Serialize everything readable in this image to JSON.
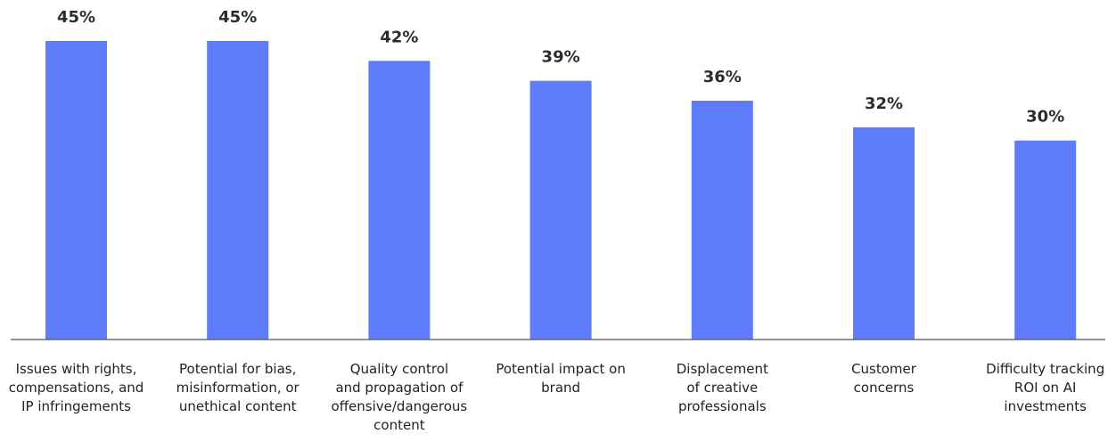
{
  "chart_data": {
    "type": "bar",
    "categories": [
      "Issues with rights, compensations, and IP infringements",
      "Potential for bias, misinformation, or unethical content",
      "Quality control and propagation of offensive/dangerous content",
      "Potential impact on brand",
      "Displacement of creative professionals",
      "Customer concerns",
      "Difficulty tracking ROI on AI investments"
    ],
    "category_lines": [
      [
        "Issues with rights,",
        "compensations, and",
        "IP infringements"
      ],
      [
        "Potential for bias,",
        "misinformation, or",
        "unethical content"
      ],
      [
        "Quality control",
        "and propagation of",
        "offensive/dangerous",
        "content"
      ],
      [
        "Potential impact on",
        "brand"
      ],
      [
        "Displacement",
        "of creative",
        "professionals"
      ],
      [
        "Customer",
        "concerns"
      ],
      [
        "Difficulty tracking",
        "ROI on AI",
        "investments"
      ]
    ],
    "values": [
      45,
      45,
      42,
      39,
      36,
      32,
      30
    ],
    "value_labels": [
      "45%",
      "45%",
      "42%",
      "39%",
      "36%",
      "32%",
      "30%"
    ],
    "title": "",
    "xlabel": "",
    "ylabel": "",
    "ylim": [
      0,
      45
    ],
    "grid": false,
    "bar_color": "#5f7cfa",
    "axis_color": "#555555"
  }
}
